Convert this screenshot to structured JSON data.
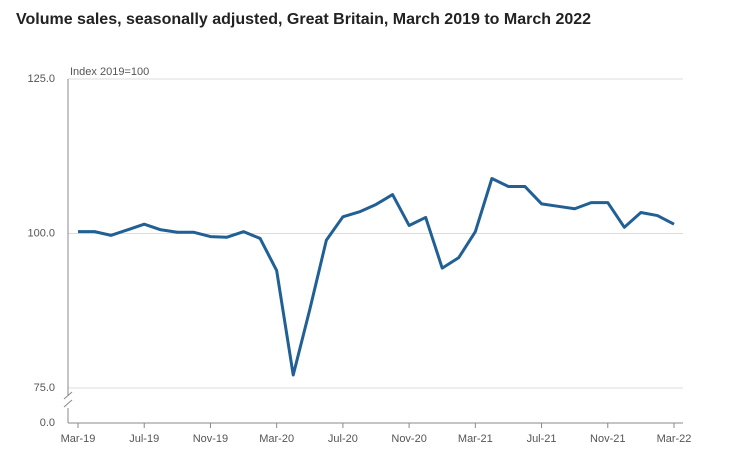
{
  "chart_data": {
    "type": "line",
    "title": "Volume sales, seasonally adjusted, Great Britain, March 2019 to March 2022",
    "subtitle": "Index 2019=100",
    "categories": [
      "Mar-19",
      null,
      null,
      null,
      "Jul-19",
      null,
      null,
      null,
      "Nov-19",
      null,
      null,
      null,
      "Mar-20",
      null,
      null,
      null,
      "Jul-20",
      null,
      null,
      null,
      "Nov-20",
      null,
      null,
      null,
      "Mar-21",
      null,
      null,
      null,
      "Jul-21",
      null,
      null,
      null,
      "Nov-21",
      null,
      null,
      null,
      "Mar-22"
    ],
    "series": [
      {
        "name": "Volume sales",
        "color": "#206095",
        "values": [
          100.3,
          100.3,
          99.7,
          100.6,
          101.5,
          100.6,
          100.2,
          100.2,
          99.5,
          99.4,
          100.3,
          99.2,
          94.0,
          77.1,
          87.7,
          98.9,
          102.7,
          103.5,
          104.7,
          106.3,
          101.3,
          102.6,
          94.4,
          96.1,
          100.3,
          108.9,
          107.6,
          107.6,
          104.8,
          104.4,
          104.0,
          105.0,
          105.0,
          101.0,
          103.4,
          102.9,
          101.5
        ]
      }
    ],
    "ylim": [
      0,
      125
    ],
    "axis_break": [
      0,
      75
    ],
    "yticks": [
      {
        "value": 0,
        "label": "0.0"
      },
      {
        "value": 75,
        "label": "75.0"
      },
      {
        "value": 100,
        "label": "100.0"
      },
      {
        "value": 125,
        "label": "125.0"
      }
    ],
    "grid": true
  }
}
